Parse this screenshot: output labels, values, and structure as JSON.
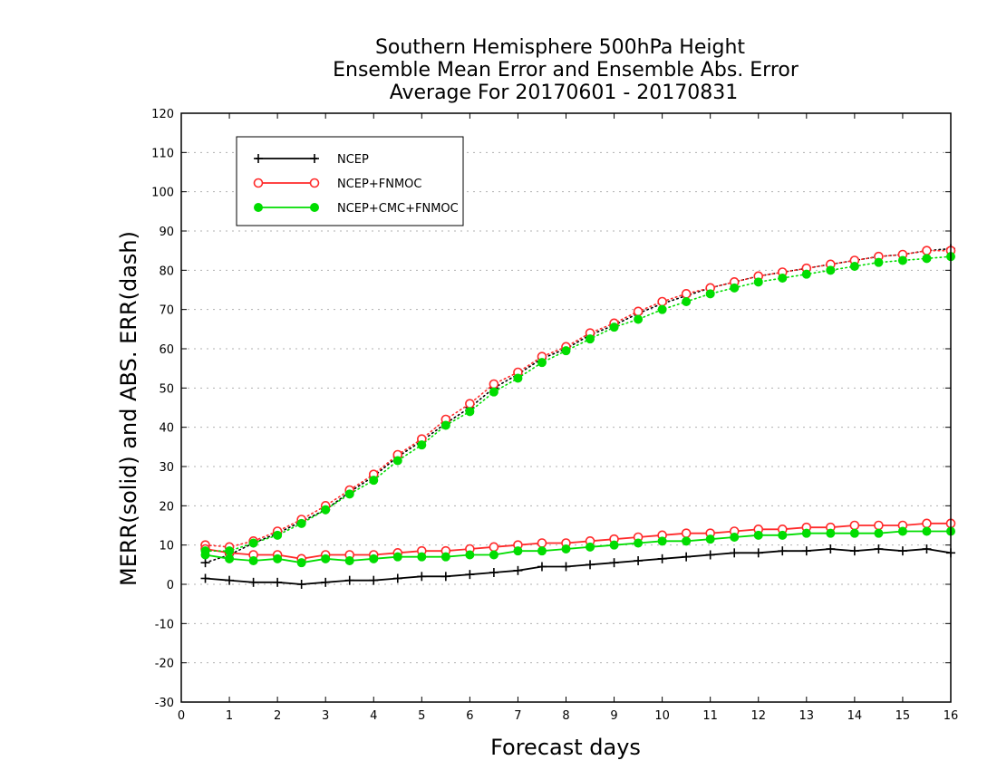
{
  "colors": {
    "background": "#ffffff",
    "axis": "#000000",
    "grid": "#b0b0b0",
    "ncep": "#000000",
    "ncep_fnmoc": "#ff2a2a",
    "ncep_cmc_fnmoc": "#00dd00"
  },
  "chart_data": {
    "type": "line",
    "title_lines": [
      "Southern Hemisphere 500hPa Height",
      "Ensemble Mean Error and Ensemble Abs. Error",
      "Average For 20170601 - 20170831"
    ],
    "xlabel": "Forecast days",
    "ylabel": "MERR(solid) and ABS. ERR(dash)",
    "xlim": [
      0,
      16
    ],
    "ylim": [
      -30,
      120
    ],
    "x_ticks": [
      0,
      1,
      2,
      3,
      4,
      5,
      6,
      7,
      8,
      9,
      10,
      11,
      12,
      13,
      14,
      15,
      16
    ],
    "y_ticks": [
      -30,
      -20,
      -10,
      0,
      10,
      20,
      30,
      40,
      50,
      60,
      70,
      80,
      90,
      100,
      110,
      120
    ],
    "grid": "horizontal dotted",
    "legend_placement": "top-left",
    "x": [
      0.5,
      1,
      1.5,
      2,
      2.5,
      3,
      3.5,
      4,
      4.5,
      5,
      5.5,
      6,
      6.5,
      7,
      7.5,
      8,
      8.5,
      9,
      9.5,
      10,
      10.5,
      11,
      11.5,
      12,
      12.5,
      13,
      13.5,
      14,
      14.5,
      15,
      15.5,
      16
    ],
    "series": [
      {
        "name": "NCEP",
        "key": "ncep",
        "marker": "plus",
        "mean_error": [
          1.5,
          1.0,
          0.5,
          0.5,
          0.0,
          0.5,
          1.0,
          1.0,
          1.5,
          2.0,
          2.0,
          2.5,
          3.0,
          3.5,
          4.5,
          4.5,
          5.0,
          5.5,
          6.0,
          6.5,
          7.0,
          7.5,
          8.0,
          8.0,
          8.5,
          8.5,
          9.0,
          8.5,
          9.0,
          8.5,
          9.0,
          8.0
        ],
        "abs_error": [
          5.5,
          7.5,
          10.5,
          13.0,
          16.0,
          19.0,
          23.5,
          27.5,
          32.5,
          36.5,
          41.0,
          45.0,
          50.0,
          53.5,
          57.5,
          60.0,
          63.5,
          66.0,
          69.0,
          71.5,
          73.5,
          75.5,
          77.0,
          78.5,
          79.5,
          80.5,
          81.5,
          82.5,
          83.5,
          84.0,
          85.0,
          85.5
        ]
      },
      {
        "name": "NCEP+FNMOC",
        "key": "ncep_fnmoc",
        "marker": "open-circle",
        "mean_error": [
          9.0,
          8.0,
          7.5,
          7.5,
          6.5,
          7.5,
          7.5,
          7.5,
          8.0,
          8.5,
          8.5,
          9.0,
          9.5,
          10.0,
          10.5,
          10.5,
          11.0,
          11.5,
          12.0,
          12.5,
          13.0,
          13.0,
          13.5,
          14.0,
          14.0,
          14.5,
          14.5,
          15.0,
          15.0,
          15.0,
          15.5,
          15.5
        ],
        "abs_error": [
          10.0,
          9.5,
          11.0,
          13.5,
          16.5,
          20.0,
          24.0,
          28.0,
          33.0,
          37.0,
          42.0,
          46.0,
          51.0,
          54.0,
          58.0,
          60.5,
          64.0,
          66.5,
          69.5,
          72.0,
          74.0,
          75.5,
          77.0,
          78.5,
          79.5,
          80.5,
          81.5,
          82.5,
          83.5,
          84.0,
          85.0,
          85.0
        ]
      },
      {
        "name": "NCEP+CMC+FNMOC",
        "key": "ncep_cmc_fnmoc",
        "marker": "filled-circle",
        "mean_error": [
          7.5,
          6.5,
          6.0,
          6.5,
          5.5,
          6.5,
          6.0,
          6.5,
          7.0,
          7.0,
          7.0,
          7.5,
          7.5,
          8.5,
          8.5,
          9.0,
          9.5,
          10.0,
          10.5,
          11.0,
          11.0,
          11.5,
          12.0,
          12.5,
          12.5,
          13.0,
          13.0,
          13.0,
          13.0,
          13.5,
          13.5,
          13.5
        ],
        "abs_error": [
          8.5,
          8.5,
          10.5,
          12.5,
          15.5,
          19.0,
          23.0,
          26.5,
          31.5,
          35.5,
          40.5,
          44.0,
          49.0,
          52.5,
          56.5,
          59.5,
          62.5,
          65.5,
          67.5,
          70.0,
          72.0,
          74.0,
          75.5,
          77.0,
          78.0,
          79.0,
          80.0,
          81.0,
          82.0,
          82.5,
          83.0,
          83.5
        ]
      }
    ]
  }
}
